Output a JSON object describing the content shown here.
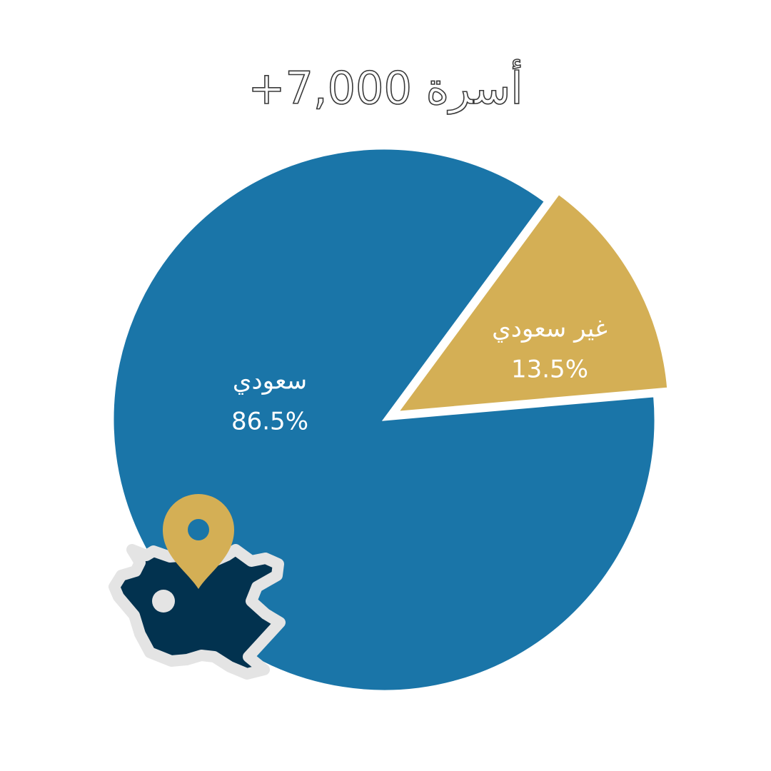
{
  "chart_data": {
    "type": "pie",
    "title": "أسرة 7,000+",
    "categories": [
      "سعودي",
      "غير سعودي"
    ],
    "values": [
      86.5,
      13.5
    ],
    "value_labels": [
      "86.5%",
      "13.5%"
    ],
    "colors": [
      "#1a75a8",
      "#d4af55"
    ]
  }
}
